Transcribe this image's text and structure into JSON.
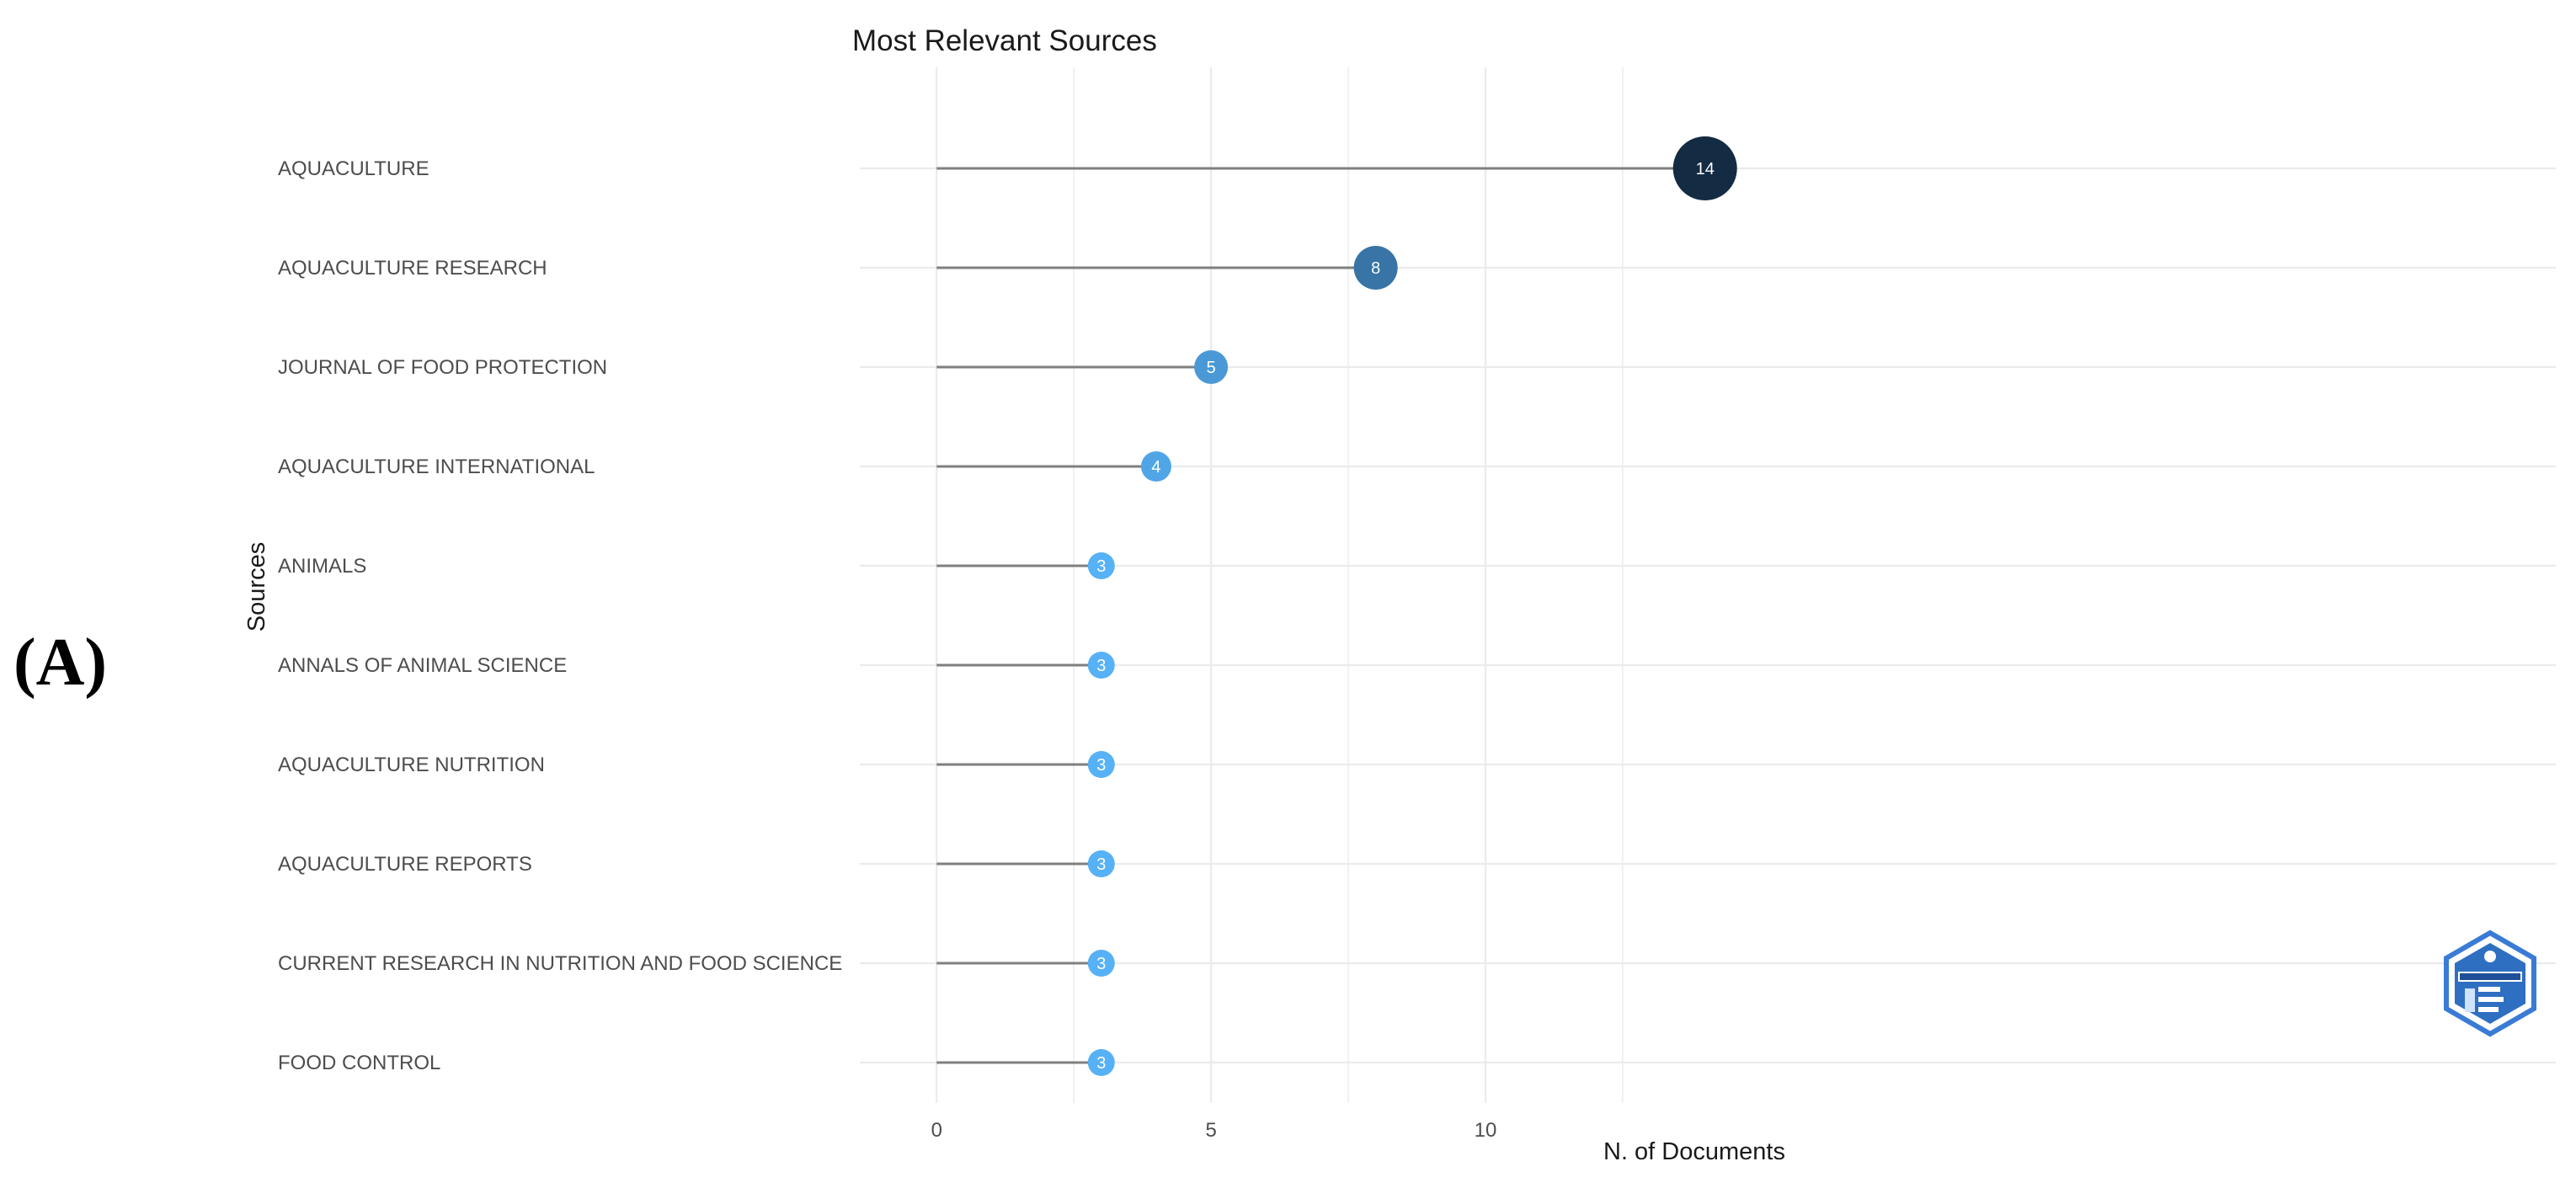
{
  "panel_label": "(A)",
  "chart_data": {
    "type": "lollipop",
    "title": "Most Relevant Sources",
    "xlabel": "N. of Documents",
    "ylabel": "Sources",
    "xlim": [
      -1.4,
      29.5
    ],
    "x_ticks": [
      0,
      5,
      10
    ],
    "x_tick_labels": [
      "0",
      "5",
      "10"
    ],
    "grid": true,
    "categories": [
      "AQUACULTURE",
      "AQUACULTURE RESEARCH",
      "JOURNAL OF FOOD PROTECTION",
      "AQUACULTURE INTERNATIONAL",
      "ANIMALS",
      "ANNALS OF ANIMAL SCIENCE",
      "AQUACULTURE NUTRITION",
      "AQUACULTURE REPORTS",
      "CURRENT RESEARCH IN NUTRITION AND FOOD SCIENCE",
      "FOOD CONTROL"
    ],
    "values": [
      14,
      8,
      5,
      4,
      3,
      3,
      3,
      3,
      3,
      3
    ],
    "data_labels": [
      "14",
      "8",
      "5",
      "4",
      "3",
      "3",
      "3",
      "3",
      "3",
      "3"
    ],
    "colors": {
      "low": "#56b1f7",
      "high": "#132b43",
      "stem": "#7f7f7f",
      "grid": "#ebebeb"
    }
  },
  "watermark": {
    "icon": "bibliometrix-logo-icon"
  }
}
